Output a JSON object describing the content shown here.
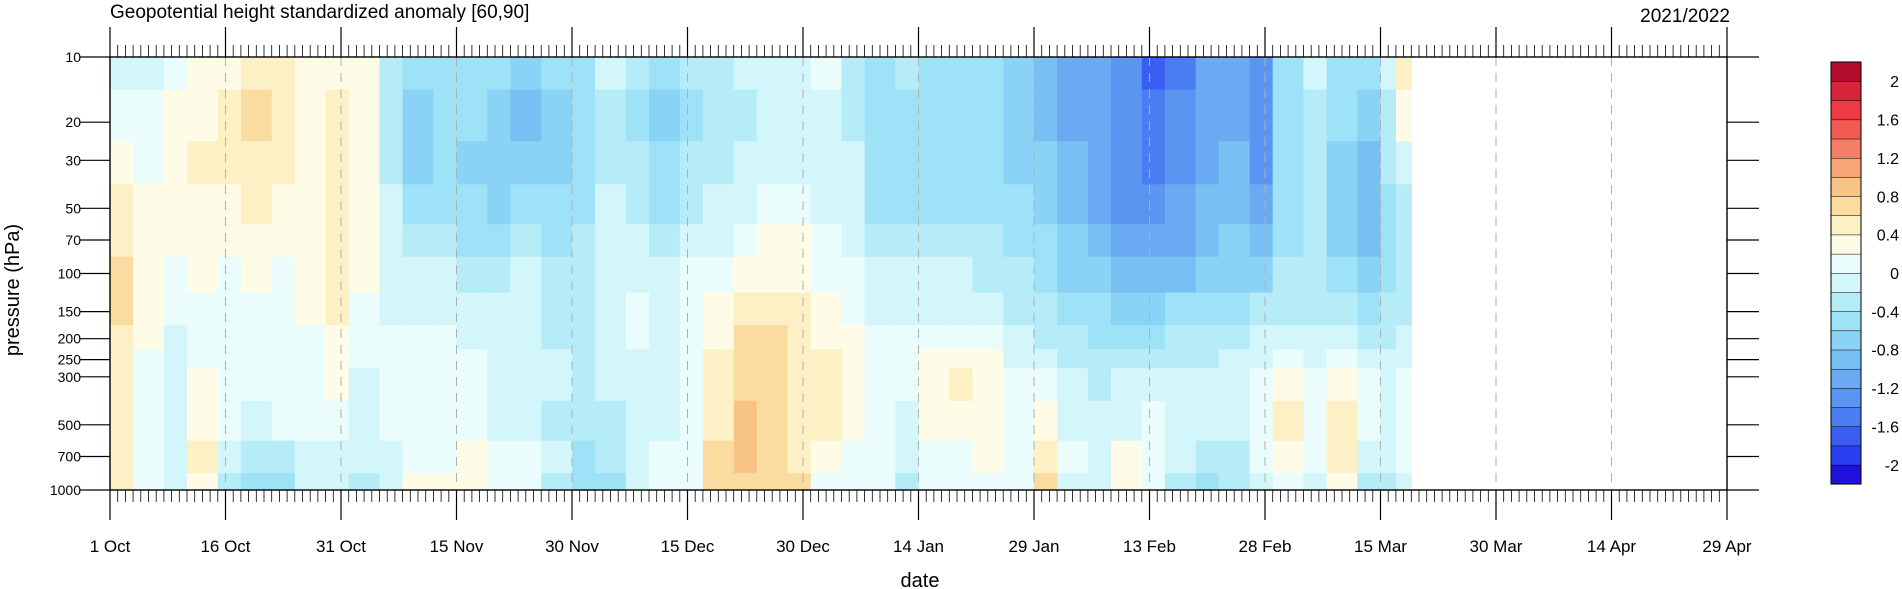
{
  "chart_data": {
    "type": "heatmap",
    "title": "Geopotential height standardized anomaly [60,90]",
    "season_label": "2021/2022",
    "xlabel": "date",
    "ylabel": "pressure (hPa)",
    "y_scale": "log",
    "y_reversed": true,
    "xlim": [
      "2021-10-01",
      "2022-04-29"
    ],
    "data_end_date": "2022-03-19",
    "x_ticks": [
      {
        "date": "2021-10-01",
        "label": "1 Oct"
      },
      {
        "date": "2021-10-16",
        "label": "16 Oct"
      },
      {
        "date": "2021-10-31",
        "label": "31 Oct"
      },
      {
        "date": "2021-11-15",
        "label": "15 Nov"
      },
      {
        "date": "2021-11-30",
        "label": "30 Nov"
      },
      {
        "date": "2021-12-15",
        "label": "15 Dec"
      },
      {
        "date": "2021-12-30",
        "label": "30 Dec"
      },
      {
        "date": "2022-01-14",
        "label": "14 Jan"
      },
      {
        "date": "2022-01-29",
        "label": "29 Jan"
      },
      {
        "date": "2022-02-13",
        "label": "13 Feb"
      },
      {
        "date": "2022-02-28",
        "label": "28 Feb"
      },
      {
        "date": "2022-03-15",
        "label": "15 Mar"
      },
      {
        "date": "2022-03-30",
        "label": "30 Mar"
      },
      {
        "date": "2022-04-14",
        "label": "14 Apr"
      },
      {
        "date": "2022-04-29",
        "label": "29 Apr"
      }
    ],
    "y_ticks": [
      10,
      20,
      30,
      50,
      70,
      100,
      150,
      200,
      250,
      300,
      500,
      700,
      1000
    ],
    "colorbar": {
      "levels": [
        -2.2,
        -2.0,
        -1.8,
        -1.6,
        -1.4,
        -1.2,
        -1.0,
        -0.8,
        -0.6,
        -0.4,
        -0.2,
        0.0,
        0.2,
        0.4,
        0.6,
        0.8,
        1.0,
        1.2,
        1.4,
        1.6,
        1.8,
        2.0,
        2.2
      ],
      "colors": [
        "#1f10dc",
        "#2a3ff0",
        "#3a5ef2",
        "#4a7cf2",
        "#5a95f2",
        "#6aaaf2",
        "#78c0f4",
        "#8ad2f6",
        "#9ee2f8",
        "#b6ecf8",
        "#d2f6fa",
        "#eafcfc",
        "#fefbe6",
        "#fdf0c4",
        "#fbdca0",
        "#f8c486",
        "#f6a676",
        "#f47e66",
        "#f25a54",
        "#ee3a44",
        "#d8243a",
        "#b00e2c"
      ],
      "labels": [
        {
          "value": -2.0,
          "text": "-2"
        },
        {
          "value": -1.6,
          "text": "-1.6"
        },
        {
          "value": -1.2,
          "text": "-1.2"
        },
        {
          "value": -0.8,
          "text": "-0.8"
        },
        {
          "value": -0.4,
          "text": "-0.4"
        },
        {
          "value": 0.0,
          "text": "0"
        },
        {
          "value": 0.4,
          "text": "0.4"
        },
        {
          "value": 0.8,
          "text": "0.8"
        },
        {
          "value": 1.2,
          "text": "1.2"
        },
        {
          "value": 1.6,
          "text": "1.6"
        },
        {
          "value": 2.0,
          "text": "2"
        }
      ]
    },
    "pressure_levels": [
      10,
      20,
      30,
      50,
      70,
      100,
      150,
      200,
      250,
      300,
      500,
      700,
      1000
    ],
    "anomaly_series": [
      {
        "start": "2021-10-01",
        "end": "2021-10-04",
        "values": [
          -0.1,
          0.1,
          0.2,
          0.4,
          0.5,
          0.6,
          0.6,
          0.5,
          0.5,
          0.5,
          0.5,
          0.5,
          0.4
        ]
      },
      {
        "start": "2021-10-04",
        "end": "2021-10-08",
        "values": [
          -0.1,
          0.0,
          0.1,
          0.3,
          0.3,
          0.3,
          0.2,
          0.2,
          0.1,
          0.1,
          0.0,
          0.0,
          0.0
        ]
      },
      {
        "start": "2021-10-08",
        "end": "2021-10-11",
        "values": [
          0.1,
          0.2,
          0.3,
          0.3,
          0.2,
          0.1,
          0.0,
          -0.1,
          -0.1,
          -0.1,
          -0.1,
          -0.1,
          -0.1
        ]
      },
      {
        "start": "2021-10-11",
        "end": "2021-10-15",
        "values": [
          0.2,
          0.3,
          0.4,
          0.3,
          0.2,
          0.2,
          0.1,
          0.0,
          0.1,
          0.2,
          0.3,
          0.5,
          0.2
        ]
      },
      {
        "start": "2021-10-15",
        "end": "2021-10-18",
        "values": [
          0.3,
          0.4,
          0.4,
          0.3,
          0.2,
          0.1,
          0.1,
          0.0,
          0.0,
          0.0,
          0.0,
          -0.2,
          -0.3
        ]
      },
      {
        "start": "2021-10-18",
        "end": "2021-10-22",
        "values": [
          0.5,
          0.6,
          0.5,
          0.4,
          0.3,
          0.2,
          0.1,
          0.1,
          0.0,
          0.0,
          -0.1,
          -0.4,
          -0.5
        ]
      },
      {
        "start": "2021-10-22",
        "end": "2021-10-25",
        "values": [
          0.4,
          0.5,
          0.4,
          0.3,
          0.2,
          0.1,
          0.1,
          0.1,
          0.0,
          0.0,
          0.0,
          -0.3,
          -0.5
        ]
      },
      {
        "start": "2021-10-25",
        "end": "2021-10-29",
        "values": [
          0.2,
          0.3,
          0.3,
          0.2,
          0.2,
          0.2,
          0.2,
          0.1,
          0.1,
          0.1,
          0.0,
          -0.1,
          -0.2
        ]
      },
      {
        "start": "2021-10-29",
        "end": "2021-11-01",
        "values": [
          0.3,
          0.4,
          0.4,
          0.4,
          0.5,
          0.5,
          0.4,
          0.3,
          0.2,
          0.2,
          0.0,
          -0.1,
          -0.1
        ]
      },
      {
        "start": "2021-11-01",
        "end": "2021-11-05",
        "values": [
          0.2,
          0.2,
          0.3,
          0.3,
          0.2,
          0.2,
          0.1,
          0.0,
          0.0,
          -0.1,
          -0.1,
          -0.2,
          -0.3
        ]
      },
      {
        "start": "2021-11-05",
        "end": "2021-11-08",
        "values": [
          -0.4,
          -0.4,
          -0.3,
          -0.2,
          -0.2,
          -0.1,
          -0.1,
          0.0,
          0.0,
          0.0,
          0.0,
          -0.1,
          -0.2
        ]
      },
      {
        "start": "2021-11-08",
        "end": "2021-11-12",
        "values": [
          -0.6,
          -0.8,
          -0.8,
          -0.6,
          -0.4,
          -0.2,
          -0.1,
          0.0,
          0.0,
          0.1,
          0.1,
          0.1,
          0.2
        ]
      },
      {
        "start": "2021-11-12",
        "end": "2021-11-15",
        "values": [
          -0.5,
          -0.6,
          -0.6,
          -0.5,
          -0.4,
          -0.2,
          -0.1,
          0.0,
          0.1,
          0.0,
          0.0,
          0.1,
          0.2
        ]
      },
      {
        "start": "2021-11-15",
        "end": "2021-11-19",
        "values": [
          -0.5,
          -0.6,
          -0.7,
          -0.6,
          -0.5,
          -0.3,
          -0.2,
          -0.1,
          0.0,
          0.0,
          0.0,
          0.2,
          0.3
        ]
      },
      {
        "start": "2021-11-19",
        "end": "2021-11-22",
        "values": [
          -0.6,
          -0.7,
          -0.8,
          -0.7,
          -0.5,
          -0.3,
          -0.2,
          -0.2,
          -0.1,
          -0.1,
          -0.1,
          0.0,
          0.1
        ]
      },
      {
        "start": "2021-11-22",
        "end": "2021-11-26",
        "values": [
          -0.7,
          -0.9,
          -0.8,
          -0.6,
          -0.4,
          -0.2,
          -0.2,
          -0.2,
          -0.1,
          -0.1,
          -0.1,
          0.0,
          0.0
        ]
      },
      {
        "start": "2021-11-26",
        "end": "2021-11-30",
        "values": [
          -0.6,
          -0.7,
          -0.7,
          -0.6,
          -0.5,
          -0.4,
          -0.3,
          -0.3,
          -0.2,
          -0.2,
          -0.3,
          -0.2,
          -0.3
        ]
      },
      {
        "start": "2021-11-30",
        "end": "2021-12-03",
        "values": [
          -0.5,
          -0.6,
          -0.6,
          -0.5,
          -0.4,
          -0.3,
          -0.3,
          -0.3,
          -0.3,
          -0.3,
          -0.4,
          -0.5,
          -0.6
        ]
      },
      {
        "start": "2021-12-03",
        "end": "2021-12-07",
        "values": [
          -0.2,
          -0.3,
          -0.3,
          -0.2,
          -0.1,
          -0.1,
          -0.1,
          -0.2,
          -0.2,
          -0.2,
          -0.3,
          -0.3,
          -0.5
        ]
      },
      {
        "start": "2021-12-07",
        "end": "2021-12-10",
        "values": [
          -0.4,
          -0.5,
          -0.4,
          -0.4,
          -0.2,
          -0.1,
          0.0,
          0.0,
          -0.1,
          -0.1,
          -0.2,
          -0.1,
          -0.2
        ]
      },
      {
        "start": "2021-12-10",
        "end": "2021-12-14",
        "values": [
          -0.6,
          -0.7,
          -0.6,
          -0.5,
          -0.3,
          -0.2,
          -0.1,
          -0.1,
          -0.1,
          -0.1,
          -0.1,
          0.0,
          0.0
        ]
      },
      {
        "start": "2021-12-14",
        "end": "2021-12-17",
        "values": [
          -0.4,
          -0.5,
          -0.4,
          -0.3,
          -0.2,
          0.0,
          0.1,
          0.1,
          0.1,
          0.1,
          0.1,
          0.1,
          0.1
        ]
      },
      {
        "start": "2021-12-17",
        "end": "2021-12-21",
        "values": [
          -0.3,
          -0.3,
          -0.3,
          -0.2,
          -0.1,
          0.1,
          0.2,
          0.3,
          0.4,
          0.4,
          0.5,
          0.6,
          0.6
        ]
      },
      {
        "start": "2021-12-21",
        "end": "2021-12-24",
        "values": [
          -0.2,
          -0.3,
          -0.2,
          -0.1,
          0.1,
          0.3,
          0.5,
          0.6,
          0.7,
          0.7,
          0.8,
          0.8,
          0.7
        ]
      },
      {
        "start": "2021-12-24",
        "end": "2021-12-28",
        "values": [
          -0.1,
          -0.1,
          -0.1,
          0.0,
          0.2,
          0.3,
          0.5,
          0.6,
          0.6,
          0.7,
          0.7,
          0.7,
          0.7
        ]
      },
      {
        "start": "2021-12-28",
        "end": "2021-12-31",
        "values": [
          -0.1,
          -0.1,
          -0.1,
          0.1,
          0.2,
          0.3,
          0.4,
          0.4,
          0.4,
          0.5,
          0.5,
          0.5,
          0.6
        ]
      },
      {
        "start": "2021-12-31",
        "end": "2022-01-04",
        "values": [
          0.0,
          -0.1,
          -0.1,
          -0.1,
          0.0,
          0.1,
          0.2,
          0.3,
          0.4,
          0.4,
          0.4,
          0.3,
          0.1
        ]
      },
      {
        "start": "2022-01-04",
        "end": "2022-01-07",
        "values": [
          -0.3,
          -0.3,
          -0.2,
          -0.2,
          -0.1,
          0.0,
          0.1,
          0.2,
          0.3,
          0.3,
          0.2,
          0.0,
          0.0
        ]
      },
      {
        "start": "2022-01-07",
        "end": "2022-01-11",
        "values": [
          -0.5,
          -0.6,
          -0.6,
          -0.5,
          -0.3,
          -0.2,
          -0.1,
          0.0,
          0.1,
          0.1,
          0.0,
          0.0,
          0.1
        ]
      },
      {
        "start": "2022-01-11",
        "end": "2022-01-14",
        "values": [
          -0.4,
          -0.5,
          -0.6,
          -0.5,
          -0.4,
          -0.2,
          -0.1,
          0.0,
          0.0,
          0.0,
          -0.1,
          -0.2,
          -0.4
        ]
      },
      {
        "start": "2022-01-14",
        "end": "2022-01-18",
        "values": [
          -0.5,
          -0.6,
          -0.6,
          -0.5,
          -0.4,
          -0.2,
          -0.1,
          0.1,
          0.2,
          0.2,
          0.3,
          0.1,
          0.0
        ]
      },
      {
        "start": "2022-01-18",
        "end": "2022-01-21",
        "values": [
          -0.6,
          -0.6,
          -0.6,
          -0.5,
          -0.3,
          -0.2,
          -0.1,
          0.1,
          0.3,
          0.4,
          0.3,
          0.1,
          0.0
        ]
      },
      {
        "start": "2022-01-21",
        "end": "2022-01-25",
        "values": [
          -0.6,
          -0.6,
          -0.6,
          -0.5,
          -0.4,
          -0.3,
          -0.1,
          0.0,
          0.2,
          0.3,
          0.2,
          0.2,
          0.1
        ]
      },
      {
        "start": "2022-01-25",
        "end": "2022-01-29",
        "values": [
          -0.7,
          -0.7,
          -0.7,
          -0.6,
          -0.5,
          -0.4,
          -0.3,
          -0.2,
          -0.1,
          0.0,
          0.1,
          0.1,
          0.0
        ]
      },
      {
        "start": "2022-01-29",
        "end": "2022-02-01",
        "values": [
          -0.9,
          -0.9,
          -0.8,
          -0.7,
          -0.6,
          -0.5,
          -0.4,
          -0.3,
          -0.2,
          0.0,
          0.3,
          0.5,
          0.6
        ]
      },
      {
        "start": "2022-02-01",
        "end": "2022-02-05",
        "values": [
          -1.1,
          -1.1,
          -1.0,
          -0.9,
          -0.8,
          -0.7,
          -0.5,
          -0.4,
          -0.3,
          -0.2,
          -0.1,
          0.0,
          -0.1
        ]
      },
      {
        "start": "2022-02-05",
        "end": "2022-02-08",
        "values": [
          -1.2,
          -1.2,
          -1.2,
          -1.1,
          -1.0,
          -0.8,
          -0.6,
          -0.5,
          -0.4,
          -0.3,
          -0.2,
          -0.1,
          -0.2
        ]
      },
      {
        "start": "2022-02-08",
        "end": "2022-02-12",
        "values": [
          -1.4,
          -1.4,
          -1.4,
          -1.3,
          -1.1,
          -0.9,
          -0.7,
          -0.5,
          -0.3,
          -0.2,
          -0.1,
          0.2,
          0.3
        ]
      },
      {
        "start": "2022-02-12",
        "end": "2022-02-15",
        "values": [
          -1.8,
          -1.6,
          -1.5,
          -1.4,
          -1.2,
          -1.0,
          -0.7,
          -0.5,
          -0.3,
          -0.2,
          0.0,
          0.1,
          0.0
        ]
      },
      {
        "start": "2022-02-15",
        "end": "2022-02-19",
        "values": [
          -1.5,
          -1.4,
          -1.3,
          -1.2,
          -1.1,
          -0.9,
          -0.6,
          -0.4,
          -0.3,
          -0.2,
          -0.1,
          -0.2,
          -0.3
        ]
      },
      {
        "start": "2022-02-19",
        "end": "2022-02-22",
        "values": [
          -1.2,
          -1.2,
          -1.1,
          -1.0,
          -0.9,
          -0.8,
          -0.6,
          -0.4,
          -0.3,
          -0.2,
          -0.1,
          -0.3,
          -0.5
        ]
      },
      {
        "start": "2022-02-22",
        "end": "2022-02-26",
        "values": [
          -1.1,
          -1.1,
          -1.0,
          -0.9,
          -0.8,
          -0.7,
          -0.5,
          -0.3,
          -0.2,
          -0.1,
          -0.1,
          -0.3,
          -0.4
        ]
      },
      {
        "start": "2022-02-26",
        "end": "2022-03-01",
        "values": [
          -1.3,
          -1.3,
          -1.3,
          -1.2,
          -1.0,
          -0.7,
          -0.4,
          -0.2,
          -0.1,
          0.0,
          0.1,
          0.0,
          -0.2
        ]
      },
      {
        "start": "2022-03-01",
        "end": "2022-03-05",
        "values": [
          -0.5,
          -0.6,
          -0.6,
          -0.6,
          -0.5,
          -0.4,
          -0.3,
          -0.2,
          0.0,
          0.2,
          0.4,
          0.2,
          0.0
        ]
      },
      {
        "start": "2022-03-05",
        "end": "2022-03-08",
        "values": [
          -0.1,
          -0.3,
          -0.4,
          -0.4,
          -0.4,
          -0.4,
          -0.3,
          -0.2,
          -0.1,
          0.0,
          0.1,
          0.0,
          -0.1
        ]
      },
      {
        "start": "2022-03-08",
        "end": "2022-03-12",
        "values": [
          -0.5,
          -0.6,
          -0.7,
          -0.8,
          -0.7,
          -0.5,
          -0.3,
          -0.2,
          0.0,
          0.2,
          0.5,
          0.4,
          0.2
        ]
      },
      {
        "start": "2022-03-12",
        "end": "2022-03-15",
        "values": [
          -0.6,
          -0.7,
          -0.9,
          -1.0,
          -0.9,
          -0.7,
          -0.5,
          -0.3,
          -0.1,
          0.0,
          0.1,
          -0.2,
          -0.4
        ]
      },
      {
        "start": "2022-03-15",
        "end": "2022-03-17",
        "values": [
          -0.2,
          -0.3,
          -0.4,
          -0.5,
          -0.5,
          -0.5,
          -0.4,
          -0.3,
          -0.2,
          -0.1,
          -0.1,
          -0.2,
          -0.3
        ]
      },
      {
        "start": "2022-03-17",
        "end": "2022-03-19",
        "values": [
          0.4,
          0.2,
          -0.1,
          -0.3,
          -0.4,
          -0.4,
          -0.3,
          -0.2,
          -0.1,
          0.0,
          0.0,
          0.0,
          -0.1
        ]
      }
    ]
  }
}
